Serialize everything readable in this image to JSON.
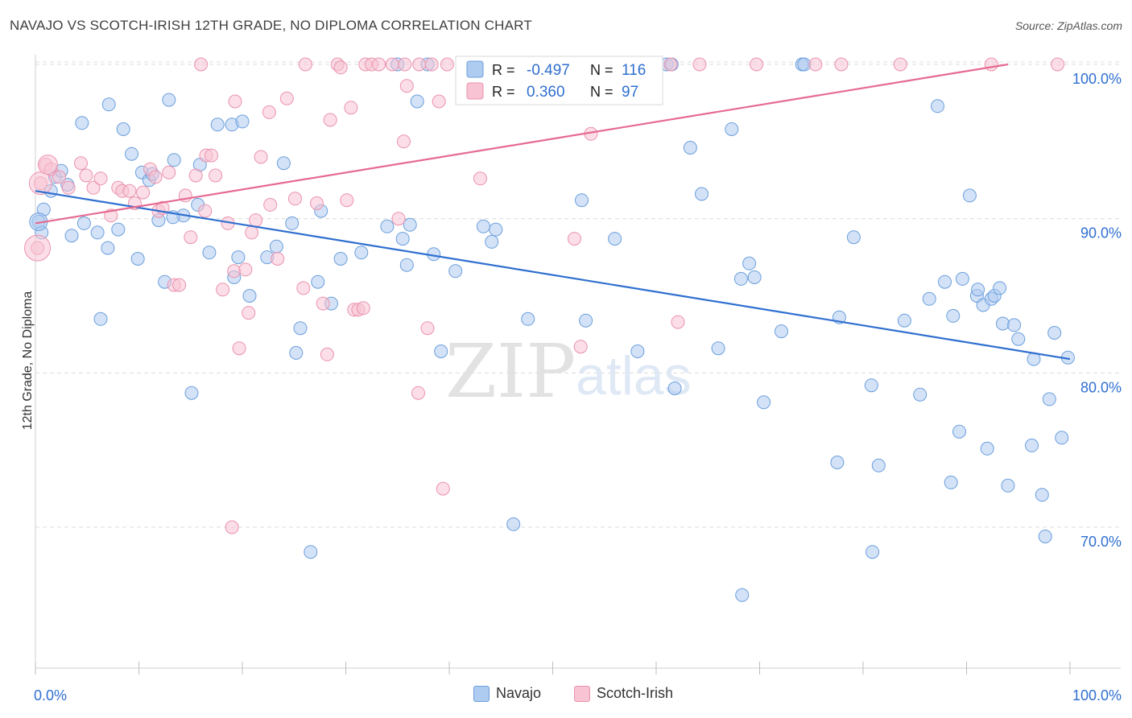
{
  "header": {
    "title": "NAVAJO VS SCOTCH-IRISH 12TH GRADE, NO DIPLOMA CORRELATION CHART",
    "source": "Source: ZipAtlas.com"
  },
  "watermark": {
    "zip": "ZIP",
    "atlas": "atlas"
  },
  "legend_top": {
    "rows": [
      {
        "r_label": "R =",
        "r_value": "-0.497",
        "n_label": "N =",
        "n_value": "116"
      },
      {
        "r_label": "R =",
        "r_value": "0.360",
        "n_label": "N =",
        "n_value": "97"
      }
    ]
  },
  "legend_bottom": {
    "items": [
      {
        "label": "Navajo"
      },
      {
        "label": "Scotch-Irish"
      }
    ]
  },
  "colors": {
    "navajo_fill": "#aecbf0",
    "navajo_stroke": "#6b9fdc",
    "navajo_line": "#2f6fd0",
    "scotch_fill": "#f8c3d3",
    "scotch_stroke": "#ea93ae",
    "scotch_line": "#e66a91",
    "value_text": "#2f6fd0",
    "grid": "#dcdcdc"
  },
  "chart_data": {
    "type": "scatter",
    "title": "NAVAJO VS SCOTCH-IRISH 12TH GRADE, NO DIPLOMA CORRELATION CHART",
    "xlabel": "",
    "ylabel": "12th Grade, No Diploma",
    "xlim": [
      0,
      100
    ],
    "ylim": [
      59,
      103
    ],
    "x_tick_labels": [
      "0.0%",
      "100.0%"
    ],
    "y_ticks": [
      70,
      80,
      90,
      100
    ],
    "y_tick_labels": [
      "70.0%",
      "80.0%",
      "90.0%",
      "100.0%"
    ],
    "grid": true,
    "legend_position": "top-center",
    "series": [
      {
        "name": "Navajo",
        "r": -0.497,
        "n": 116,
        "trend": {
          "x": [
            0,
            100
          ],
          "y": [
            91.8,
            80.9
          ]
        },
        "points": [
          [
            0.3,
            89.8
          ],
          [
            0.6,
            89.1
          ],
          [
            0.8,
            90.6
          ],
          [
            1.5,
            91.8
          ],
          [
            1.9,
            92.7
          ],
          [
            2.5,
            93.1
          ],
          [
            3.1,
            92.2
          ],
          [
            3.5,
            88.9
          ],
          [
            4.7,
            89.7
          ],
          [
            4.5,
            96.2
          ],
          [
            6.0,
            89.1
          ],
          [
            7.1,
            97.4
          ],
          [
            7.0,
            88.1
          ],
          [
            8.0,
            89.3
          ],
          [
            8.5,
            95.8
          ],
          [
            9.3,
            94.2
          ],
          [
            9.9,
            87.4
          ],
          [
            10.3,
            93.0
          ],
          [
            11.0,
            92.5
          ],
          [
            11.3,
            92.9
          ],
          [
            11.9,
            89.9
          ],
          [
            12.5,
            85.9
          ],
          [
            12.9,
            97.7
          ],
          [
            13.4,
            93.8
          ],
          [
            14.3,
            90.2
          ],
          [
            15.7,
            90.9
          ],
          [
            15.9,
            93.5
          ],
          [
            16.8,
            87.8
          ],
          [
            17.6,
            96.1
          ],
          [
            19.0,
            96.1
          ],
          [
            19.2,
            86.2
          ],
          [
            19.6,
            87.5
          ],
          [
            20.0,
            96.3
          ],
          [
            20.7,
            85.0
          ],
          [
            22.4,
            87.5
          ],
          [
            23.3,
            88.2
          ],
          [
            24.0,
            93.6
          ],
          [
            24.8,
            89.7
          ],
          [
            25.2,
            81.3
          ],
          [
            25.6,
            82.9
          ],
          [
            27.3,
            85.9
          ],
          [
            27.6,
            90.5
          ],
          [
            28.6,
            84.5
          ],
          [
            29.5,
            87.4
          ],
          [
            31.5,
            87.8
          ],
          [
            34.0,
            89.5
          ],
          [
            35.0,
            100.0
          ],
          [
            35.5,
            88.7
          ],
          [
            35.9,
            87.0
          ],
          [
            36.2,
            89.6
          ],
          [
            36.9,
            97.6
          ],
          [
            37.9,
            100.0
          ],
          [
            38.5,
            87.7
          ],
          [
            39.2,
            81.4
          ],
          [
            40.6,
            86.6
          ],
          [
            42.1,
            100.0
          ],
          [
            43.3,
            89.5
          ],
          [
            44.1,
            88.5
          ],
          [
            44.5,
            89.3
          ],
          [
            46.0,
            100.0
          ],
          [
            47.6,
            83.5
          ],
          [
            52.8,
            91.2
          ],
          [
            53.2,
            83.4
          ],
          [
            56.0,
            88.7
          ],
          [
            58.2,
            81.4
          ],
          [
            61.0,
            100.0
          ],
          [
            61.5,
            100.0
          ],
          [
            61.8,
            79.0
          ],
          [
            63.3,
            94.6
          ],
          [
            64.4,
            91.6
          ],
          [
            66.0,
            81.6
          ],
          [
            67.3,
            95.8
          ],
          [
            68.2,
            86.1
          ],
          [
            69.0,
            87.1
          ],
          [
            69.5,
            86.2
          ],
          [
            70.4,
            78.1
          ],
          [
            72.1,
            82.7
          ],
          [
            74.1,
            100.0
          ],
          [
            74.3,
            100.0
          ],
          [
            77.7,
            83.6
          ],
          [
            79.1,
            88.8
          ],
          [
            80.8,
            79.2
          ],
          [
            84.0,
            83.4
          ],
          [
            85.5,
            78.6
          ],
          [
            86.4,
            84.8
          ],
          [
            87.2,
            97.3
          ],
          [
            87.9,
            85.9
          ],
          [
            88.7,
            83.7
          ],
          [
            89.3,
            76.2
          ],
          [
            89.6,
            86.1
          ],
          [
            90.3,
            91.5
          ],
          [
            91.0,
            85.0
          ],
          [
            91.1,
            85.4
          ],
          [
            91.6,
            84.4
          ],
          [
            92.4,
            84.8
          ],
          [
            92.7,
            85.0
          ],
          [
            93.2,
            85.5
          ],
          [
            93.5,
            83.2
          ],
          [
            94.6,
            83.1
          ],
          [
            95.0,
            82.2
          ],
          [
            96.3,
            75.3
          ],
          [
            96.5,
            80.9
          ],
          [
            97.3,
            72.1
          ],
          [
            98.0,
            78.3
          ],
          [
            98.5,
            82.6
          ],
          [
            99.2,
            75.8
          ],
          [
            99.8,
            81.0
          ],
          [
            92.0,
            75.1
          ],
          [
            94.0,
            72.7
          ],
          [
            88.5,
            72.9
          ],
          [
            81.5,
            74.0
          ],
          [
            77.5,
            74.2
          ],
          [
            97.6,
            69.4
          ],
          [
            80.9,
            68.4
          ],
          [
            68.3,
            65.6
          ],
          [
            46.2,
            70.2
          ],
          [
            26.6,
            68.4
          ],
          [
            15.1,
            78.7
          ],
          [
            6.3,
            83.5
          ],
          [
            13.3,
            90.1
          ]
        ]
      },
      {
        "name": "Scotch-Irish",
        "r": 0.36,
        "n": 97,
        "trend": {
          "x": [
            0,
            94
          ],
          "y": [
            89.7,
            100.0
          ]
        },
        "points": [
          [
            0.2,
            88.1
          ],
          [
            0.5,
            92.3
          ],
          [
            1.0,
            93.5
          ],
          [
            1.5,
            93.2
          ],
          [
            2.3,
            92.7
          ],
          [
            3.2,
            92.0
          ],
          [
            4.4,
            93.6
          ],
          [
            4.9,
            92.8
          ],
          [
            5.6,
            92.0
          ],
          [
            6.3,
            92.6
          ],
          [
            7.3,
            90.2
          ],
          [
            8.0,
            92.0
          ],
          [
            8.4,
            91.8
          ],
          [
            9.1,
            91.8
          ],
          [
            9.6,
            91.0
          ],
          [
            10.4,
            91.7
          ],
          [
            11.1,
            93.2
          ],
          [
            11.6,
            92.7
          ],
          [
            11.9,
            90.5
          ],
          [
            12.3,
            90.7
          ],
          [
            12.9,
            93.0
          ],
          [
            13.4,
            85.7
          ],
          [
            13.9,
            85.7
          ],
          [
            14.5,
            91.5
          ],
          [
            15.0,
            88.8
          ],
          [
            15.5,
            92.8
          ],
          [
            16.4,
            90.5
          ],
          [
            16.5,
            94.1
          ],
          [
            17.0,
            94.1
          ],
          [
            17.4,
            92.8
          ],
          [
            18.1,
            85.4
          ],
          [
            18.6,
            89.7
          ],
          [
            19.2,
            86.6
          ],
          [
            19.3,
            97.6
          ],
          [
            19.7,
            81.6
          ],
          [
            20.3,
            86.7
          ],
          [
            20.6,
            83.9
          ],
          [
            20.9,
            89.1
          ],
          [
            21.3,
            89.9
          ],
          [
            21.8,
            94.0
          ],
          [
            22.6,
            96.9
          ],
          [
            22.7,
            90.9
          ],
          [
            23.4,
            87.4
          ],
          [
            24.3,
            97.8
          ],
          [
            25.1,
            91.3
          ],
          [
            25.9,
            85.5
          ],
          [
            26.1,
            100.0
          ],
          [
            27.2,
            91.0
          ],
          [
            27.8,
            84.5
          ],
          [
            28.2,
            81.2
          ],
          [
            28.5,
            96.4
          ],
          [
            29.2,
            100.0
          ],
          [
            29.5,
            99.8
          ],
          [
            30.1,
            91.2
          ],
          [
            30.5,
            97.2
          ],
          [
            30.8,
            84.1
          ],
          [
            31.2,
            84.1
          ],
          [
            31.7,
            84.2
          ],
          [
            31.9,
            100.0
          ],
          [
            32.5,
            100.0
          ],
          [
            33.2,
            100.0
          ],
          [
            34.5,
            100.0
          ],
          [
            35.1,
            90.0
          ],
          [
            35.6,
            95.0
          ],
          [
            35.7,
            100.0
          ],
          [
            35.9,
            98.6
          ],
          [
            37.0,
            78.7
          ],
          [
            37.9,
            82.9
          ],
          [
            37.1,
            100.0
          ],
          [
            38.3,
            100.0
          ],
          [
            39.0,
            97.6
          ],
          [
            39.4,
            72.5
          ],
          [
            39.8,
            100.0
          ],
          [
            41.3,
            100.0
          ],
          [
            42.1,
            100.0
          ],
          [
            43.0,
            92.6
          ],
          [
            44.6,
            100.0
          ],
          [
            45.3,
            100.0
          ],
          [
            46.5,
            100.0
          ],
          [
            48.0,
            100.0
          ],
          [
            50.0,
            100.0
          ],
          [
            52.1,
            88.7
          ],
          [
            52.7,
            81.7
          ],
          [
            53.7,
            95.5
          ],
          [
            55.0,
            100.0
          ],
          [
            57.3,
            100.0
          ],
          [
            61.4,
            100.0
          ],
          [
            64.2,
            100.0
          ],
          [
            69.7,
            100.0
          ],
          [
            75.4,
            100.0
          ],
          [
            77.9,
            100.0
          ],
          [
            83.6,
            100.0
          ],
          [
            92.4,
            100.0
          ],
          [
            98.8,
            100.0
          ],
          [
            16.0,
            100.0
          ],
          [
            62.1,
            83.3
          ],
          [
            19.0,
            70.0
          ]
        ]
      }
    ]
  }
}
